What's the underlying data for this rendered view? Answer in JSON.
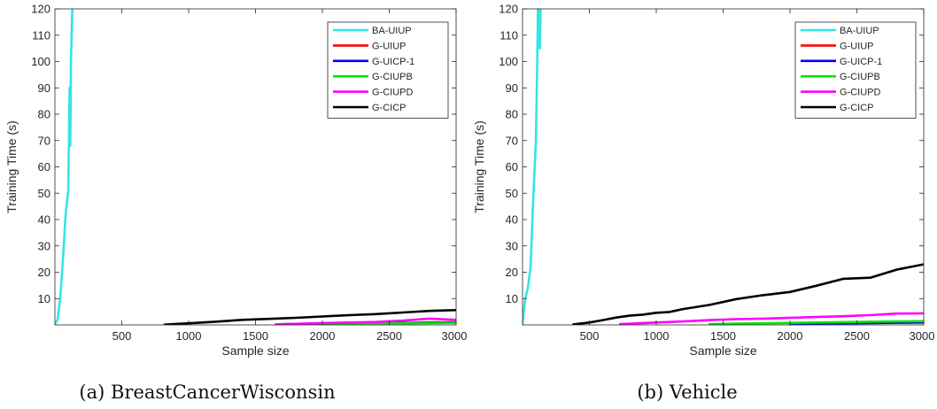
{
  "chart_data": [
    {
      "type": "line",
      "caption": "(a) BreastCancerWisconsin",
      "xlabel": "Sample size",
      "ylabel": "Training Time (s)",
      "xlim": [
        0,
        3000
      ],
      "ylim": [
        0,
        120
      ],
      "xticks": [
        500,
        1000,
        1500,
        2000,
        2500,
        3000
      ],
      "yticks": [
        10,
        20,
        30,
        40,
        50,
        60,
        70,
        80,
        90,
        100,
        110,
        120
      ],
      "grid": false,
      "legend_position": "top-right",
      "series": [
        {
          "name": "BA-UIUP",
          "color": "#33E5E5",
          "points": [
            [
              0,
              0.2
            ],
            [
              20,
              2
            ],
            [
              40,
              10
            ],
            [
              60,
              25
            ],
            [
              80,
              42
            ],
            [
              100,
              51
            ],
            [
              110,
              90
            ],
            [
              115,
              68
            ],
            [
              120,
              100
            ],
            [
              130,
              120
            ]
          ]
        },
        {
          "name": "G-UIUP",
          "color": "#FF0000",
          "points": [
            [
              2400,
              0.6
            ],
            [
              2600,
              0.7
            ],
            [
              2800,
              0.9
            ],
            [
              3000,
              1.0
            ]
          ]
        },
        {
          "name": "G-UICP-1",
          "color": "#0000FF",
          "points": [
            [
              2000,
              0.5
            ],
            [
              2400,
              0.6
            ],
            [
              2800,
              0.8
            ],
            [
              3000,
              0.9
            ]
          ]
        },
        {
          "name": "G-CIUPB",
          "color": "#00E600",
          "points": [
            [
              1700,
              0.3
            ],
            [
              2000,
              0.4
            ],
            [
              2400,
              0.5
            ],
            [
              2800,
              0.7
            ],
            [
              3000,
              0.8
            ]
          ]
        },
        {
          "name": "G-CIUPD",
          "color": "#FF00FF",
          "points": [
            [
              1650,
              0.2
            ],
            [
              2000,
              0.7
            ],
            [
              2400,
              1.1
            ],
            [
              2600,
              1.6
            ],
            [
              2800,
              2.4
            ],
            [
              3000,
              1.9
            ]
          ]
        },
        {
          "name": "G-CICP",
          "color": "#000000",
          "points": [
            [
              820,
              0.1
            ],
            [
              1000,
              0.6
            ],
            [
              1200,
              1.2
            ],
            [
              1400,
              1.9
            ],
            [
              1600,
              2.3
            ],
            [
              1800,
              2.7
            ],
            [
              2000,
              3.2
            ],
            [
              2200,
              3.7
            ],
            [
              2400,
              4.1
            ],
            [
              2600,
              4.7
            ],
            [
              2800,
              5.3
            ],
            [
              3000,
              5.6
            ]
          ]
        }
      ]
    },
    {
      "type": "line",
      "caption": "(b) Vehicle",
      "xlabel": "Sample size",
      "ylabel": "Training Time (s)",
      "xlim": [
        0,
        3000
      ],
      "ylim": [
        0,
        120
      ],
      "xticks": [
        500,
        1000,
        1500,
        2000,
        2500,
        3000
      ],
      "yticks": [
        10,
        20,
        30,
        40,
        50,
        60,
        70,
        80,
        90,
        100,
        110,
        120
      ],
      "grid": false,
      "legend_position": "top-right",
      "series": [
        {
          "name": "BA-UIUP",
          "color": "#33E5E5",
          "points": [
            [
              0,
              0.5
            ],
            [
              20,
              10
            ],
            [
              40,
              14
            ],
            [
              60,
              22
            ],
            [
              80,
              48
            ],
            [
              100,
              70
            ],
            [
              110,
              100
            ],
            [
              115,
              120
            ],
            [
              125,
              120
            ],
            [
              130,
              105
            ],
            [
              135,
              120
            ]
          ]
        },
        {
          "name": "G-UIUP",
          "color": "#FF0000",
          "points": [
            [
              2000,
              0.6
            ],
            [
              2200,
              0.7
            ],
            [
              2400,
              0.9
            ],
            [
              2600,
              1.0
            ],
            [
              2800,
              1.2
            ],
            [
              3000,
              1.3
            ]
          ]
        },
        {
          "name": "G-UICP-1",
          "color": "#0000FF",
          "points": [
            [
              2000,
              0.4
            ],
            [
              2200,
              0.5
            ],
            [
              2400,
              0.6
            ],
            [
              2600,
              0.7
            ],
            [
              2800,
              0.8
            ],
            [
              3000,
              0.9
            ]
          ]
        },
        {
          "name": "G-CIUPB",
          "color": "#00E600",
          "points": [
            [
              1400,
              0.3
            ],
            [
              1800,
              0.6
            ],
            [
              2200,
              0.9
            ],
            [
              2600,
              1.2
            ],
            [
              3000,
              1.4
            ]
          ]
        },
        {
          "name": "G-CIUPD",
          "color": "#FF00FF",
          "points": [
            [
              730,
              0.3
            ],
            [
              1000,
              0.9
            ],
            [
              1200,
              1.3
            ],
            [
              1400,
              1.8
            ],
            [
              1600,
              2.2
            ],
            [
              1800,
              2.4
            ],
            [
              2000,
              2.7
            ],
            [
              2200,
              3.0
            ],
            [
              2400,
              3.3
            ],
            [
              2600,
              3.7
            ],
            [
              2800,
              4.3
            ],
            [
              3000,
              4.4
            ]
          ]
        },
        {
          "name": "G-CICP",
          "color": "#000000",
          "points": [
            [
              380,
              0.2
            ],
            [
              500,
              0.9
            ],
            [
              600,
              1.8
            ],
            [
              700,
              2.8
            ],
            [
              800,
              3.5
            ],
            [
              900,
              3.9
            ],
            [
              1000,
              4.6
            ],
            [
              1100,
              4.9
            ],
            [
              1200,
              6.0
            ],
            [
              1400,
              7.6
            ],
            [
              1600,
              9.8
            ],
            [
              1800,
              11.3
            ],
            [
              2000,
              12.5
            ],
            [
              2200,
              14.9
            ],
            [
              2400,
              17.5
            ],
            [
              2600,
              17.9
            ],
            [
              2800,
              21.0
            ],
            [
              3000,
              23.0
            ]
          ]
        }
      ]
    }
  ]
}
